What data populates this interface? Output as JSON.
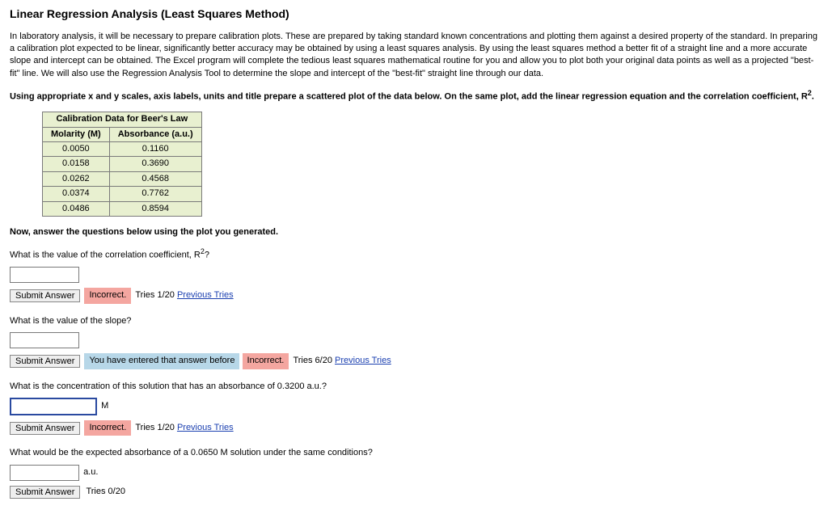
{
  "title": "Linear Regression Analysis (Least Squares Method)",
  "intro": "In laboratory analysis, it will be necessary to prepare calibration plots. These are prepared by taking standard known concentrations and plotting them against a desired property of the standard. In preparing a calibration plot expected to be linear, significantly better accuracy may be obtained by using a least squares analysis. By using the least squares method a better fit of a straight line and a more accurate slope and intercept can be obtained. The Excel program will complete the tedious least squares mathematical routine for you and allow you to plot both your original data points as well as a projected \"best-fit\" line. We will also use the Regression Analysis Tool to determine the slope and intercept of the \"best-fit\" straight line through our data.",
  "instruction_pre": "Using appropriate x and y scales, axis labels, units and title prepare a scattered plot of the data below. On the same plot, add the linear regression equation and the correlation coefficient, R",
  "instruction_post": ".",
  "table": {
    "title": "Calibration Data for Beer's Law",
    "col1": "Molarity (M)",
    "col2": "Absorbance (a.u.)",
    "rows": [
      [
        "0.0050",
        "0.1160"
      ],
      [
        "0.0158",
        "0.3690"
      ],
      [
        "0.0262",
        "0.4568"
      ],
      [
        "0.0374",
        "0.7762"
      ],
      [
        "0.0486",
        "0.8594"
      ]
    ]
  },
  "now_answer": "Now, answer the questions below using the plot you generated.",
  "q1": {
    "text_pre": "What is the value of the correlation coefficient, R",
    "text_post": "?",
    "submit": "Submit Answer",
    "status": "Incorrect.",
    "tries": "Tries 1/20",
    "prev": "Previous Tries"
  },
  "q2": {
    "text": "What is the value of the slope?",
    "submit": "Submit Answer",
    "repeat": "You have entered that answer before",
    "status": "Incorrect.",
    "tries": "Tries 6/20",
    "prev": "Previous Tries"
  },
  "q3": {
    "text": "What is the concentration of this solution that has an absorbance of 0.3200 a.u.?",
    "unit": "M",
    "submit": "Submit Answer",
    "status": "Incorrect.",
    "tries": "Tries 1/20",
    "prev": "Previous Tries"
  },
  "q4": {
    "text": "What would be the expected absorbance of a 0.0650 M solution under the same conditions?",
    "unit": "a.u.",
    "submit": "Submit Answer",
    "tries": "Tries 0/20"
  }
}
